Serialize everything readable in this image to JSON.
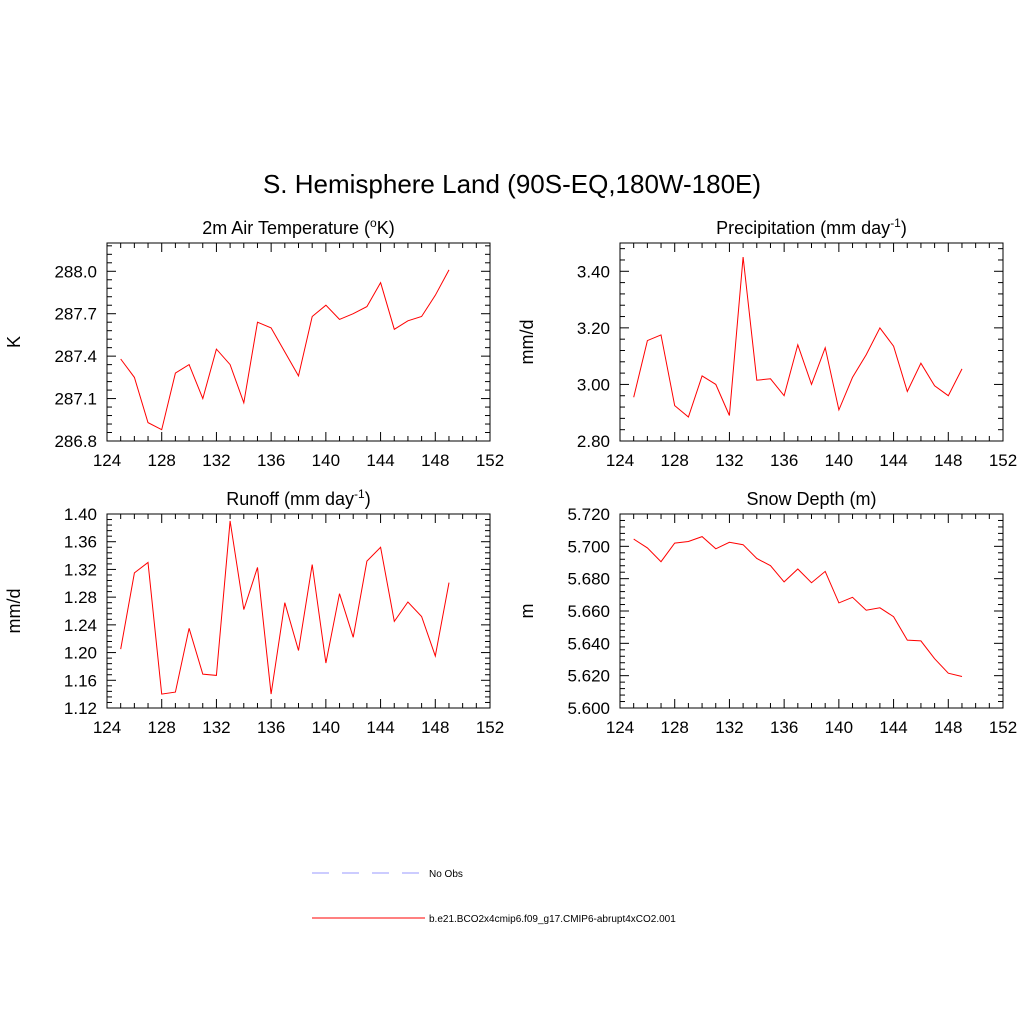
{
  "figure": {
    "title": "S. Hemisphere Land (90S-EQ,180W-180E)"
  },
  "legend": {
    "position": "bottom",
    "items": [
      {
        "label": "No Obs",
        "color": "#9999ff",
        "dash": "dashed"
      },
      {
        "label": "b.e21.BCO2x4cmip6.f09_g17.CMIP6-abrupt4xCO2.001",
        "color": "#ff0000",
        "dash": "solid"
      }
    ]
  },
  "chart_data": [
    {
      "type": "line",
      "title": "2m Air Temperature (",
      "title_sup": "o",
      "title_after": "K)",
      "ylabel": "K",
      "xlim": [
        124,
        152
      ],
      "ylim": [
        286.8,
        288.2
      ],
      "xticks": [
        "124",
        "128",
        "132",
        "136",
        "140",
        "144",
        "148",
        "152"
      ],
      "yticks": [
        "286.8",
        "287.1",
        "287.4",
        "287.7",
        "288.0"
      ],
      "ytick_values": [
        286.8,
        287.1,
        287.4,
        287.7,
        288.0
      ],
      "series": [
        {
          "color": "#ff0000",
          "x": [
            125,
            126,
            127,
            128,
            129,
            130,
            131,
            132,
            133,
            134,
            135,
            136,
            137,
            138,
            139,
            140,
            141,
            142,
            143,
            144,
            145,
            146,
            147,
            148,
            149
          ],
          "values": [
            287.38,
            287.25,
            286.93,
            286.88,
            287.28,
            287.34,
            287.1,
            287.45,
            287.34,
            287.07,
            287.64,
            287.6,
            287.43,
            287.26,
            287.68,
            287.76,
            287.66,
            287.7,
            287.75,
            287.92,
            287.59,
            287.65,
            287.68,
            287.83,
            288.01
          ]
        }
      ]
    },
    {
      "type": "line",
      "title": "Precipitation (mm day",
      "title_sup": "-1",
      "title_after": ")",
      "ylabel": "mm/d",
      "xlim": [
        124,
        152
      ],
      "ylim": [
        2.8,
        3.5
      ],
      "xticks": [
        "124",
        "128",
        "132",
        "136",
        "140",
        "144",
        "148",
        "152"
      ],
      "yticks": [
        "2.80",
        "3.00",
        "3.20",
        "3.40"
      ],
      "ytick_values": [
        2.8,
        3.0,
        3.2,
        3.4
      ],
      "series": [
        {
          "color": "#ff0000",
          "x": [
            125,
            126,
            127,
            128,
            129,
            130,
            131,
            132,
            133,
            134,
            135,
            136,
            137,
            138,
            139,
            140,
            141,
            142,
            143,
            144,
            145,
            146,
            147,
            148,
            149
          ],
          "values": [
            2.955,
            3.155,
            3.175,
            2.925,
            2.885,
            3.03,
            3.0,
            2.89,
            3.45,
            3.015,
            3.02,
            2.96,
            3.14,
            3.0,
            3.13,
            2.91,
            3.025,
            3.105,
            3.2,
            3.135,
            2.975,
            3.075,
            2.995,
            2.96,
            3.055
          ]
        }
      ]
    },
    {
      "type": "line",
      "title": "Runoff (mm day",
      "title_sup": "-1",
      "title_after": ")",
      "ylabel": "mm/d",
      "xlim": [
        124,
        152
      ],
      "ylim": [
        1.12,
        1.4
      ],
      "xticks": [
        "124",
        "128",
        "132",
        "136",
        "140",
        "144",
        "148",
        "152"
      ],
      "yticks": [
        "1.12",
        "1.16",
        "1.20",
        "1.24",
        "1.28",
        "1.32",
        "1.36",
        "1.40"
      ],
      "ytick_values": [
        1.12,
        1.16,
        1.2,
        1.24,
        1.28,
        1.32,
        1.36,
        1.4
      ],
      "series": [
        {
          "color": "#ff0000",
          "x": [
            125,
            126,
            127,
            128,
            129,
            130,
            131,
            132,
            133,
            134,
            135,
            136,
            137,
            138,
            139,
            140,
            141,
            142,
            143,
            144,
            145,
            146,
            147,
            148,
            149
          ],
          "values": [
            1.205,
            1.315,
            1.33,
            1.14,
            1.143,
            1.235,
            1.169,
            1.167,
            1.39,
            1.262,
            1.323,
            1.14,
            1.272,
            1.203,
            1.327,
            1.185,
            1.285,
            1.222,
            1.332,
            1.352,
            1.245,
            1.273,
            1.252,
            1.195,
            1.301
          ]
        }
      ]
    },
    {
      "type": "line",
      "title": "Snow Depth (m)",
      "title_sup": "",
      "title_after": "",
      "ylabel": "m",
      "xlim": [
        124,
        152
      ],
      "ylim": [
        5.6,
        5.72
      ],
      "xticks": [
        "124",
        "128",
        "132",
        "136",
        "140",
        "144",
        "148",
        "152"
      ],
      "yticks": [
        "5.600",
        "5.620",
        "5.640",
        "5.660",
        "5.680",
        "5.700",
        "5.720"
      ],
      "ytick_values": [
        5.6,
        5.62,
        5.64,
        5.66,
        5.68,
        5.7,
        5.72
      ],
      "series": [
        {
          "color": "#ff0000",
          "x": [
            125,
            126,
            127,
            128,
            129,
            130,
            131,
            132,
            133,
            134,
            135,
            136,
            137,
            138,
            139,
            140,
            141,
            142,
            143,
            144,
            145,
            146,
            147,
            148,
            149
          ],
          "values": [
            5.7045,
            5.699,
            5.6905,
            5.702,
            5.703,
            5.706,
            5.6985,
            5.7025,
            5.701,
            5.6925,
            5.688,
            5.678,
            5.686,
            5.6775,
            5.6845,
            5.665,
            5.6685,
            5.6605,
            5.662,
            5.6565,
            5.642,
            5.6415,
            5.6305,
            5.6215,
            5.6195
          ]
        }
      ]
    }
  ]
}
